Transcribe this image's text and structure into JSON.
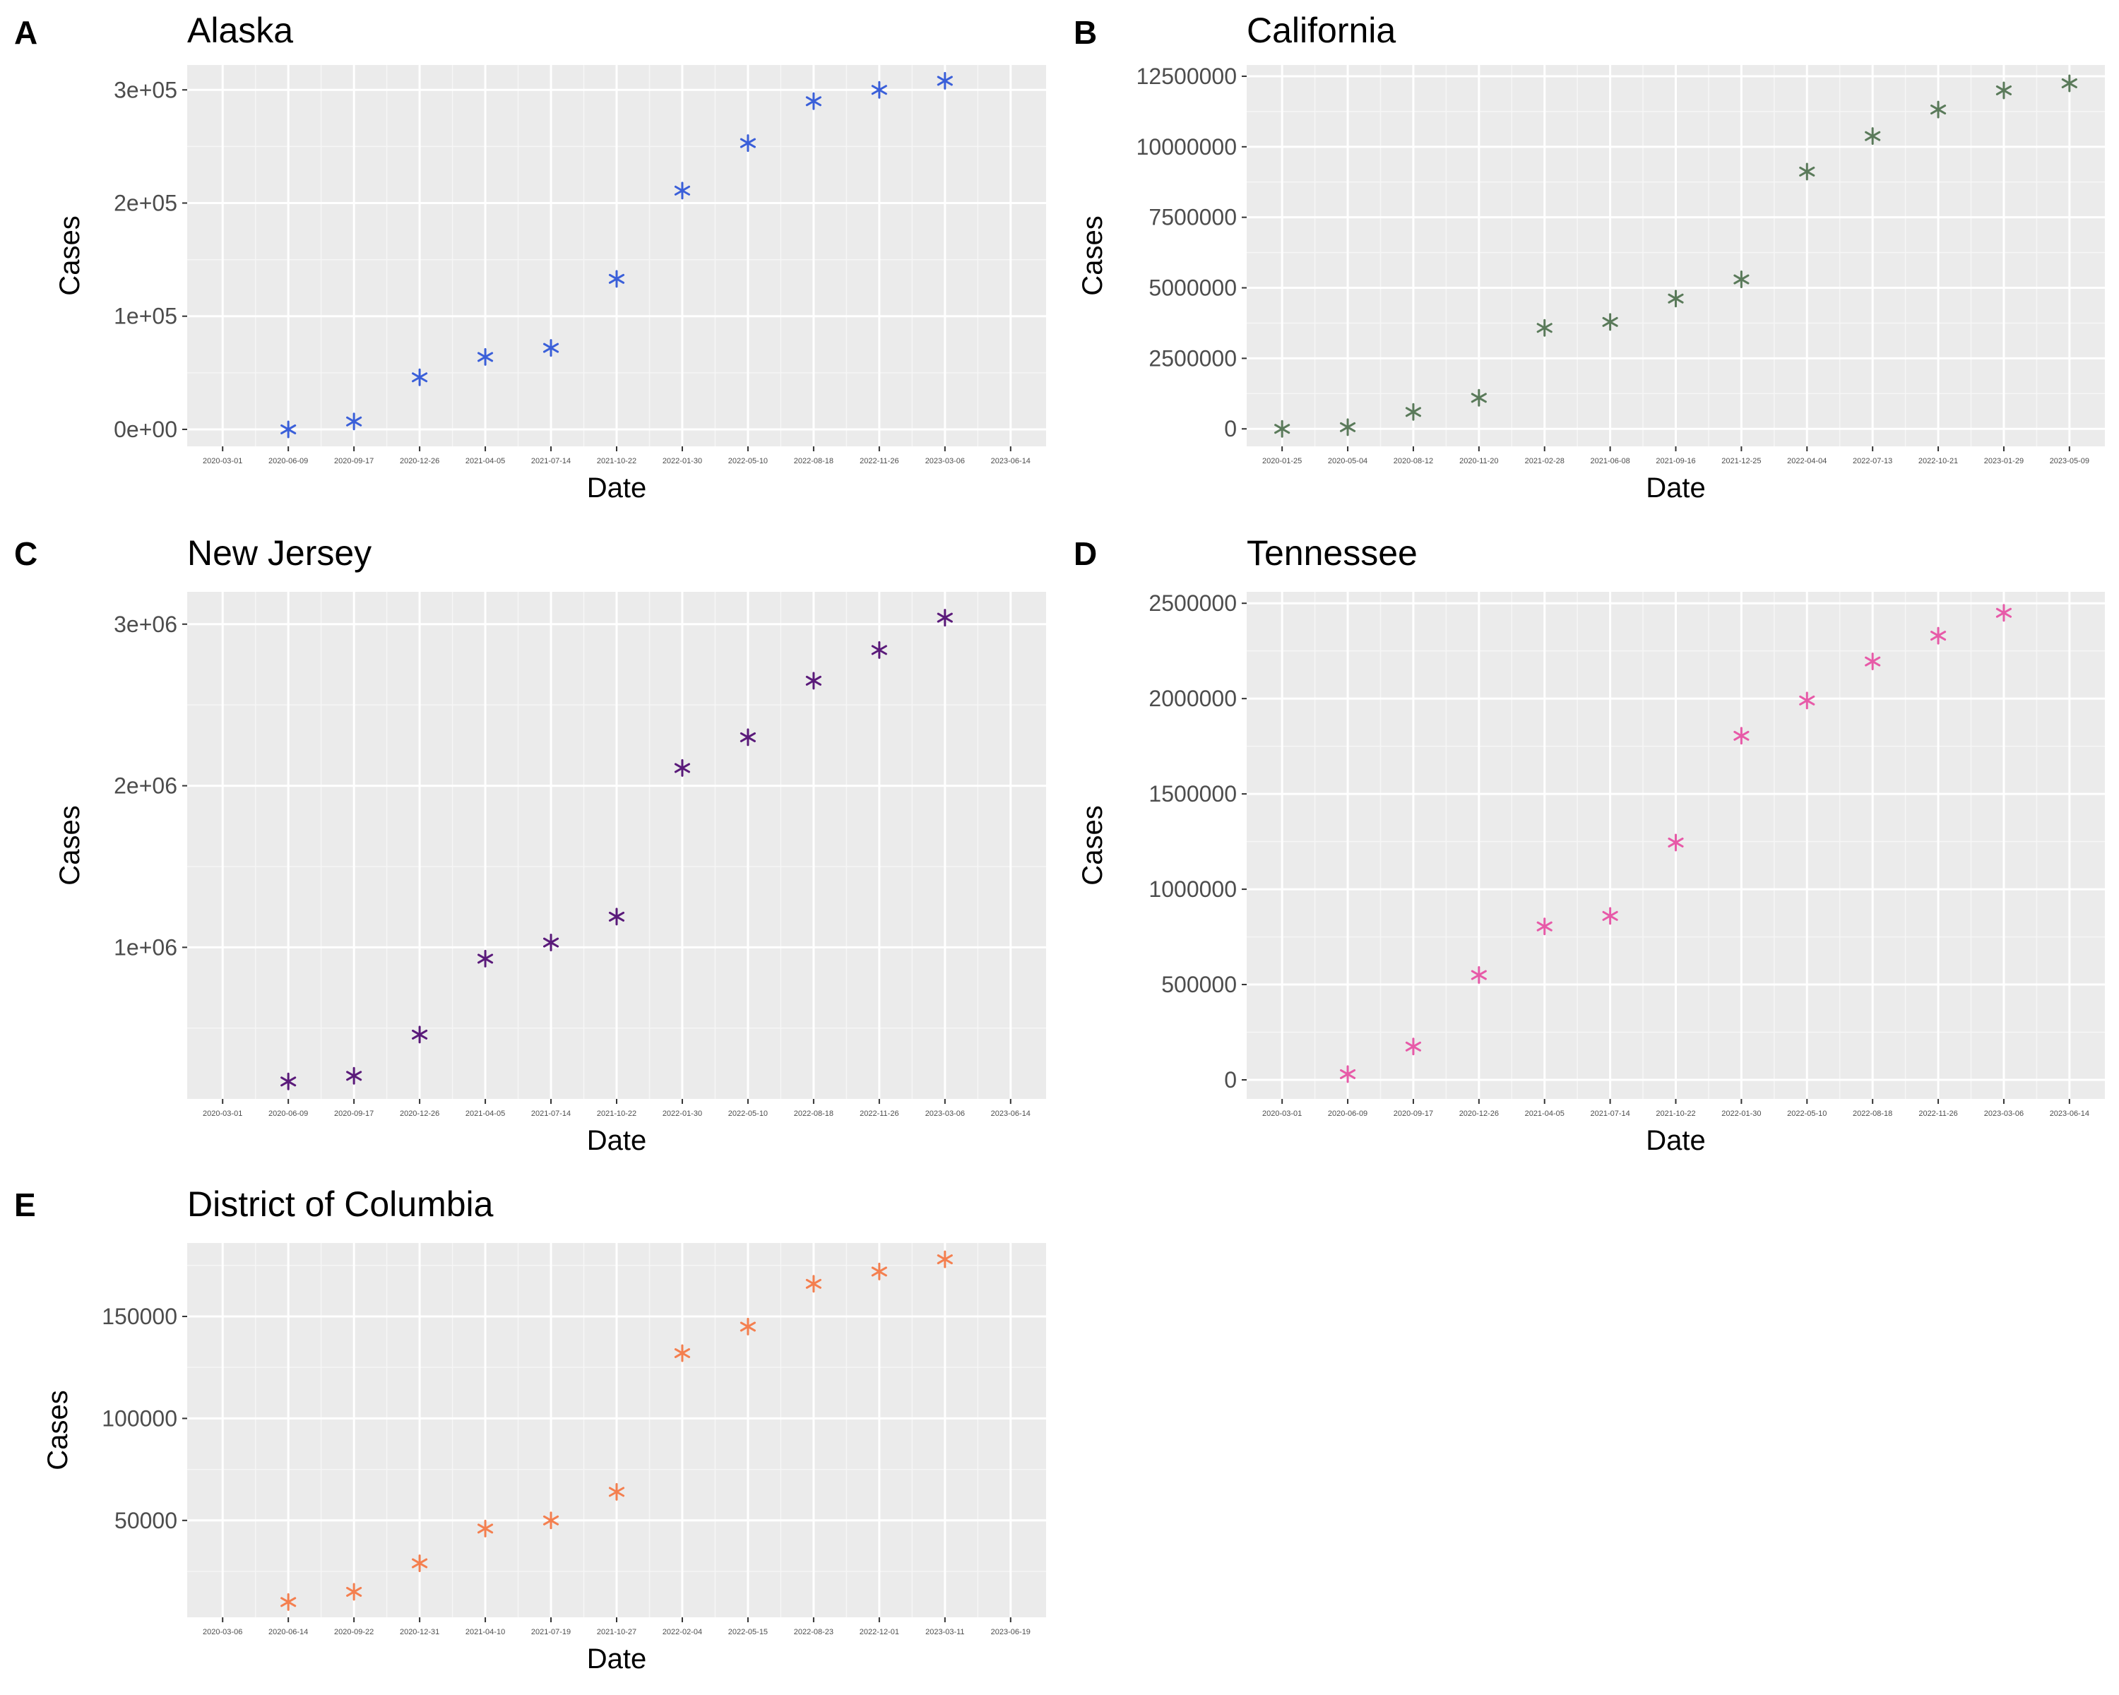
{
  "chart_data": [
    {
      "panel_letter": "A",
      "type": "scatter",
      "title": "Alaska",
      "xlabel": "Date",
      "ylabel": "Cases",
      "marker": "asterisk",
      "color": "#3a5fd9",
      "x_ticks": [
        "2020-03-01",
        "2020-06-09",
        "2020-09-17",
        "2020-12-26",
        "2021-04-05",
        "2021-07-14",
        "2021-10-22",
        "2022-01-30",
        "2022-05-10",
        "2022-08-18",
        "2022-11-26",
        "2023-03-06",
        "2023-06-14"
      ],
      "y_ticks": [
        {
          "value": 0,
          "label": "0e+00"
        },
        {
          "value": 100000,
          "label": "1e+05"
        },
        {
          "value": 200000,
          "label": "2e+05"
        },
        {
          "value": 300000,
          "label": "3e+05"
        }
      ],
      "ylim": [
        -15000,
        322000
      ],
      "points": [
        {
          "x": "2020-06-09",
          "y": 0
        },
        {
          "x": "2020-09-17",
          "y": 7000
        },
        {
          "x": "2020-12-26",
          "y": 46000
        },
        {
          "x": "2021-04-05",
          "y": 64000
        },
        {
          "x": "2021-07-14",
          "y": 72000
        },
        {
          "x": "2021-10-22",
          "y": 133000
        },
        {
          "x": "2022-01-30",
          "y": 211000
        },
        {
          "x": "2022-05-10",
          "y": 253000
        },
        {
          "x": "2022-08-18",
          "y": 290000
        },
        {
          "x": "2022-11-26",
          "y": 300000
        },
        {
          "x": "2023-03-06",
          "y": 308000
        }
      ]
    },
    {
      "panel_letter": "B",
      "type": "scatter",
      "title": "California",
      "xlabel": "Date",
      "ylabel": "Cases",
      "marker": "asterisk",
      "color": "#5a7a5a",
      "x_ticks": [
        "2020-01-25",
        "2020-05-04",
        "2020-08-12",
        "2020-11-20",
        "2021-02-28",
        "2021-06-08",
        "2021-09-16",
        "2021-12-25",
        "2022-04-04",
        "2022-07-13",
        "2022-10-21",
        "2023-01-29",
        "2023-05-09"
      ],
      "y_ticks": [
        {
          "value": 0,
          "label": "0"
        },
        {
          "value": 2500000,
          "label": "2500000"
        },
        {
          "value": 5000000,
          "label": "5000000"
        },
        {
          "value": 7500000,
          "label": "7500000"
        },
        {
          "value": 10000000,
          "label": "10000000"
        },
        {
          "value": 12500000,
          "label": "12500000"
        }
      ],
      "ylim": [
        -620000,
        12900000
      ],
      "points": [
        {
          "x": "2020-01-25",
          "y": 0
        },
        {
          "x": "2020-05-04",
          "y": 60000
        },
        {
          "x": "2020-08-12",
          "y": 600000
        },
        {
          "x": "2020-11-20",
          "y": 1100000
        },
        {
          "x": "2021-02-28",
          "y": 3580000
        },
        {
          "x": "2021-06-08",
          "y": 3790000
        },
        {
          "x": "2021-09-16",
          "y": 4620000
        },
        {
          "x": "2021-12-25",
          "y": 5300000
        },
        {
          "x": "2022-04-04",
          "y": 9120000
        },
        {
          "x": "2022-07-13",
          "y": 10380000
        },
        {
          "x": "2022-10-21",
          "y": 11320000
        },
        {
          "x": "2023-01-29",
          "y": 12000000
        },
        {
          "x": "2023-05-09",
          "y": 12250000
        }
      ]
    },
    {
      "panel_letter": "C",
      "type": "scatter",
      "title": "New Jersey",
      "xlabel": "Date",
      "ylabel": "Cases",
      "marker": "asterisk",
      "color": "#5a1a7a",
      "x_ticks": [
        "2020-03-01",
        "2020-06-09",
        "2020-09-17",
        "2020-12-26",
        "2021-04-05",
        "2021-07-14",
        "2021-10-22",
        "2022-01-30",
        "2022-05-10",
        "2022-08-18",
        "2022-11-26",
        "2023-03-06",
        "2023-06-14"
      ],
      "y_ticks": [
        {
          "value": 1000000,
          "label": "1e+06"
        },
        {
          "value": 2000000,
          "label": "2e+06"
        },
        {
          "value": 3000000,
          "label": "3e+06"
        }
      ],
      "ylim": [
        62000,
        3200000
      ],
      "points": [
        {
          "x": "2020-06-09",
          "y": 170000
        },
        {
          "x": "2020-09-17",
          "y": 205000
        },
        {
          "x": "2020-12-26",
          "y": 460000
        },
        {
          "x": "2021-04-05",
          "y": 930000
        },
        {
          "x": "2021-07-14",
          "y": 1030000
        },
        {
          "x": "2021-10-22",
          "y": 1190000
        },
        {
          "x": "2022-01-30",
          "y": 2110000
        },
        {
          "x": "2022-05-10",
          "y": 2300000
        },
        {
          "x": "2022-08-18",
          "y": 2650000
        },
        {
          "x": "2022-11-26",
          "y": 2840000
        },
        {
          "x": "2023-03-06",
          "y": 3040000
        }
      ]
    },
    {
      "panel_letter": "D",
      "type": "scatter",
      "title": "Tennessee",
      "xlabel": "Date",
      "ylabel": "Cases",
      "marker": "asterisk",
      "color": "#e75aa8",
      "x_ticks": [
        "2020-03-01",
        "2020-06-09",
        "2020-09-17",
        "2020-12-26",
        "2021-04-05",
        "2021-07-14",
        "2021-10-22",
        "2022-01-30",
        "2022-05-10",
        "2022-08-18",
        "2022-11-26",
        "2023-03-06",
        "2023-06-14"
      ],
      "y_ticks": [
        {
          "value": 0,
          "label": "0"
        },
        {
          "value": 500000,
          "label": "500000"
        },
        {
          "value": 1000000,
          "label": "1000000"
        },
        {
          "value": 1500000,
          "label": "1500000"
        },
        {
          "value": 2000000,
          "label": "2000000"
        },
        {
          "value": 2500000,
          "label": "2500000"
        }
      ],
      "ylim": [
        -100000,
        2560000
      ],
      "points": [
        {
          "x": "2020-06-09",
          "y": 30000
        },
        {
          "x": "2020-09-17",
          "y": 175000
        },
        {
          "x": "2020-12-26",
          "y": 550000
        },
        {
          "x": "2021-04-05",
          "y": 805000
        },
        {
          "x": "2021-07-14",
          "y": 860000
        },
        {
          "x": "2021-10-22",
          "y": 1245000
        },
        {
          "x": "2022-01-30",
          "y": 1805000
        },
        {
          "x": "2022-05-10",
          "y": 1990000
        },
        {
          "x": "2022-08-18",
          "y": 2195000
        },
        {
          "x": "2022-11-26",
          "y": 2330000
        },
        {
          "x": "2023-03-06",
          "y": 2450000
        }
      ]
    },
    {
      "panel_letter": "E",
      "type": "scatter",
      "title": "District of Columbia",
      "xlabel": "Date",
      "ylabel": "Cases",
      "marker": "asterisk",
      "color": "#f47f4f",
      "x_ticks": [
        "2020-03-06",
        "2020-06-14",
        "2020-09-22",
        "2020-12-31",
        "2021-04-10",
        "2021-07-19",
        "2021-10-27",
        "2022-02-04",
        "2022-05-15",
        "2022-08-23",
        "2022-12-01",
        "2023-03-11",
        "2023-06-19"
      ],
      "y_ticks": [
        {
          "value": 50000,
          "label": "50000"
        },
        {
          "value": 100000,
          "label": "100000"
        },
        {
          "value": 150000,
          "label": "150000"
        }
      ],
      "ylim": [
        2500,
        186000
      ],
      "points": [
        {
          "x": "2020-06-14",
          "y": 10000
        },
        {
          "x": "2020-09-22",
          "y": 15000
        },
        {
          "x": "2020-12-31",
          "y": 29000
        },
        {
          "x": "2021-04-10",
          "y": 46000
        },
        {
          "x": "2021-07-19",
          "y": 50000
        },
        {
          "x": "2021-10-27",
          "y": 64000
        },
        {
          "x": "2022-02-04",
          "y": 132000
        },
        {
          "x": "2022-05-15",
          "y": 145000
        },
        {
          "x": "2022-08-23",
          "y": 166000
        },
        {
          "x": "2022-12-01",
          "y": 172000
        },
        {
          "x": "2023-03-11",
          "y": 178000
        }
      ]
    }
  ]
}
